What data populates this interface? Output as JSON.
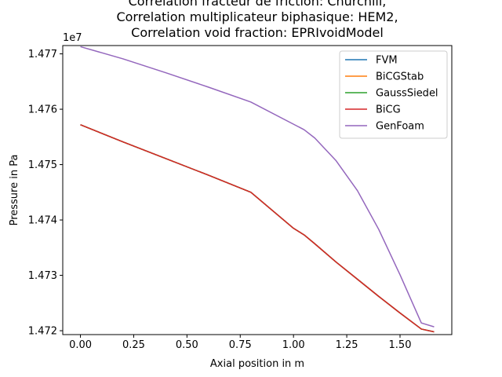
{
  "chart_data": {
    "type": "line",
    "title_lines": [
      "Correlation fracteur de friction: Churchill,",
      "Correlation multiplicateur biphasique: HEM2,",
      "Correlation void fraction: EPRIvoidModel"
    ],
    "xlabel": "Axial position in m",
    "ylabel": "Pressure in Pa",
    "y_offset_label": "1e7",
    "xlim": [
      -0.083,
      1.743
    ],
    "ylim": [
      14719300,
      14771500
    ],
    "x_ticks": [
      0.0,
      0.25,
      0.5,
      0.75,
      1.0,
      1.25,
      1.5
    ],
    "x_tick_labels": [
      "0.00",
      "0.25",
      "0.50",
      "0.75",
      "1.00",
      "1.25",
      "1.50"
    ],
    "y_ticks": [
      14720000,
      14730000,
      14740000,
      14750000,
      14760000,
      14770000
    ],
    "y_tick_labels": [
      "1.472",
      "1.473",
      "1.474",
      "1.475",
      "1.476",
      "1.477"
    ],
    "grid": false,
    "legend_position": "top-right",
    "x": [
      0.0,
      0.2,
      0.4,
      0.6,
      0.8,
      1.0,
      1.05,
      1.1,
      1.2,
      1.3,
      1.4,
      1.5,
      1.6,
      1.66
    ],
    "series": [
      {
        "name": "FVM",
        "color": "#1f77b4",
        "values": [
          14757200,
          14754100,
          14751100,
          14748100,
          14745000,
          14738500,
          14737300,
          14735700,
          14732400,
          14729300,
          14726200,
          14723200,
          14720300,
          14719800
        ]
      },
      {
        "name": "BiCGStab",
        "color": "#ff7f0e",
        "values": [
          14757200,
          14754100,
          14751100,
          14748100,
          14745000,
          14738500,
          14737300,
          14735700,
          14732400,
          14729300,
          14726200,
          14723200,
          14720300,
          14719800
        ]
      },
      {
        "name": "GaussSiedel",
        "color": "#2ca02c",
        "values": [
          14757200,
          14754100,
          14751100,
          14748100,
          14745000,
          14738500,
          14737300,
          14735700,
          14732400,
          14729300,
          14726200,
          14723200,
          14720300,
          14719800
        ]
      },
      {
        "name": "BiCG",
        "color": "#d62728",
        "values": [
          14757200,
          14754100,
          14751100,
          14748100,
          14745000,
          14738500,
          14737300,
          14735700,
          14732400,
          14729300,
          14726200,
          14723200,
          14720300,
          14719800
        ]
      },
      {
        "name": "GenFoam",
        "color": "#9467bd",
        "values": [
          14771300,
          14769100,
          14766600,
          14764000,
          14761300,
          14757300,
          14756300,
          14754800,
          14750700,
          14745300,
          14738300,
          14730100,
          14721400,
          14720700
        ]
      }
    ]
  }
}
